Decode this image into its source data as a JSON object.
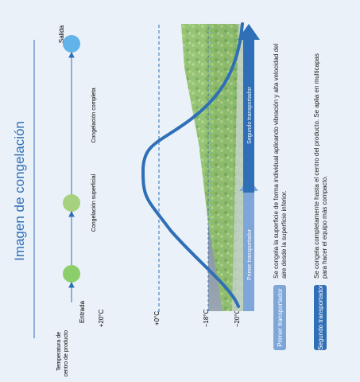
{
  "title": "Imagen de congelación",
  "axis_label": "Temperatura de centro de producto",
  "temperatures": [
    "+20°C",
    "+0°C",
    "−18°C",
    "−20°C"
  ],
  "stages": {
    "entrada": "Entrada",
    "superficial": "Congelación superficial",
    "completa": "Congelación completa",
    "salida": "Salida"
  },
  "conveyors": {
    "primer": "Primer transportador",
    "segundo": "Segundo transportador"
  },
  "descriptions": {
    "primer": "Se congela la superficie de forma individual aplicando vibración y alta velocidad del aire desde la superficie inferior.",
    "segundo": "Se congela completamente hasta el centro del producto. Se aplia en multicapas para hacer el equipo más compacto."
  },
  "colors": {
    "title": "#2f6fb7",
    "curve": "#2f6fb7",
    "entrada_dot": "#8ccf6a",
    "superficial_dot": "#a6d27f",
    "completa_dot": "#62b3e8",
    "primer_badge": "#7fa6d9",
    "segundo_badge": "#2f6fb7"
  }
}
